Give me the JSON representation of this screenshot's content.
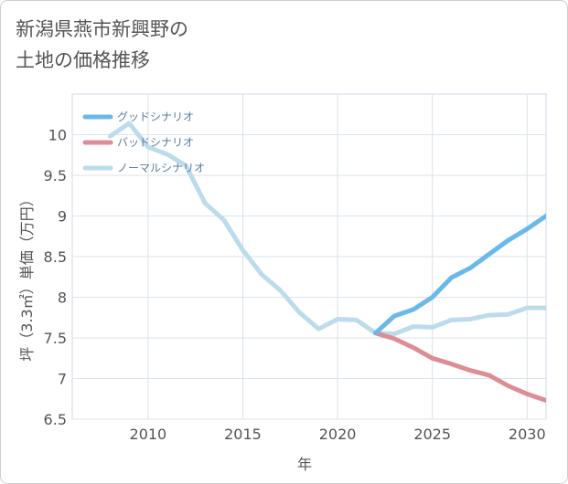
{
  "title_lines": [
    "新潟県燕市新興野の",
    "土地の価格推移"
  ],
  "chart_data": {
    "type": "line",
    "xlabel": "年",
    "ylabel": "坪（3.3㎡）単価（万円）",
    "xlim": [
      2006,
      2031
    ],
    "ylim": [
      6.5,
      10.5
    ],
    "xticks": [
      2010,
      2015,
      2020,
      2025,
      2030
    ],
    "yticks": [
      6.5,
      7,
      7.5,
      8,
      8.5,
      9,
      9.5,
      10
    ],
    "ytick_labels": [
      "6.5",
      "7",
      "7.5",
      "8",
      "8.5",
      "9",
      "9.5",
      "10"
    ],
    "grid": true,
    "legend_position": "top-left",
    "series": [
      {
        "name": "グッドシナリオ",
        "color": "#6bb8ea",
        "x": [
          2022,
          2023,
          2024,
          2025,
          2026,
          2027,
          2028,
          2029,
          2030,
          2031
        ],
        "y": [
          7.56,
          7.77,
          7.85,
          8.0,
          8.24,
          8.36,
          8.53,
          8.7,
          8.84,
          9.0
        ]
      },
      {
        "name": "バッドシナリオ",
        "color": "#dd8d94",
        "x": [
          2022,
          2023,
          2024,
          2025,
          2026,
          2027,
          2028,
          2029,
          2030,
          2031
        ],
        "y": [
          7.56,
          7.49,
          7.38,
          7.25,
          7.18,
          7.1,
          7.04,
          6.91,
          6.81,
          6.73
        ]
      },
      {
        "name": "ノーマルシナリオ",
        "color": "#bcdcec",
        "x": [
          2008,
          2009,
          2010,
          2011,
          2012,
          2013,
          2014,
          2015,
          2016,
          2017,
          2018,
          2019,
          2020,
          2021,
          2022,
          2023,
          2024,
          2025,
          2026,
          2027,
          2028,
          2029,
          2030,
          2031
        ],
        "y": [
          9.98,
          10.14,
          9.85,
          9.76,
          9.62,
          9.16,
          8.95,
          8.58,
          8.28,
          8.08,
          7.81,
          7.61,
          7.73,
          7.72,
          7.56,
          7.55,
          7.64,
          7.63,
          7.72,
          7.73,
          7.78,
          7.79,
          7.87,
          7.87
        ]
      }
    ]
  }
}
